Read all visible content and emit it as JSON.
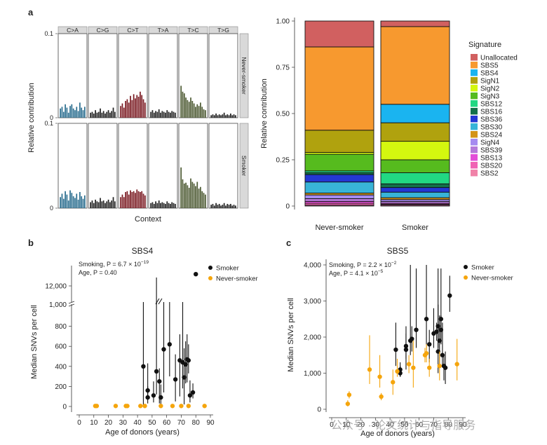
{
  "panel_labels": {
    "a": "a",
    "b": "b",
    "c": "c"
  },
  "watermark": "公众号 · 论文统计与指导服务",
  "chart_data": [
    {
      "id": "a-left",
      "type": "bar",
      "ylabel": "Relative contribution",
      "xlabel": "Context",
      "ylim": [
        0,
        0.1
      ],
      "yticks": [
        "0",
        "0.1"
      ],
      "substitutions": [
        "C>A",
        "C>G",
        "C>T",
        "T>A",
        "T>C",
        "T>G"
      ],
      "sub_colors": [
        "#2b6e8f",
        "#222222",
        "#7a1a22",
        "#222222",
        "#4d5a33",
        "#222222"
      ],
      "rows": [
        {
          "name": "Never-smoker",
          "values": [
            [
              0.011,
              0.013,
              0.007,
              0.016,
              0.012,
              0.006,
              0.014,
              0.016,
              0.011,
              0.009,
              0.013,
              0.008,
              0.018,
              0.012,
              0.009,
              0.013
            ],
            [
              0.006,
              0.007,
              0.005,
              0.009,
              0.006,
              0.007,
              0.011,
              0.006,
              0.008,
              0.005,
              0.007,
              0.009,
              0.006,
              0.008,
              0.012,
              0.007
            ],
            [
              0.014,
              0.017,
              0.012,
              0.02,
              0.022,
              0.018,
              0.026,
              0.021,
              0.028,
              0.023,
              0.027,
              0.025,
              0.031,
              0.027,
              0.022,
              0.018
            ],
            [
              0.007,
              0.009,
              0.006,
              0.008,
              0.007,
              0.01,
              0.006,
              0.008,
              0.007,
              0.006,
              0.009,
              0.007,
              0.006,
              0.008,
              0.007,
              0.006
            ],
            [
              0.038,
              0.031,
              0.029,
              0.024,
              0.021,
              0.019,
              0.024,
              0.02,
              0.017,
              0.013,
              0.016,
              0.014,
              0.018,
              0.013,
              0.01,
              0.009
            ],
            [
              0.003,
              0.004,
              0.003,
              0.005,
              0.003,
              0.004,
              0.003,
              0.004,
              0.006,
              0.003,
              0.004,
              0.003,
              0.005,
              0.003,
              0.004,
              0.003
            ]
          ]
        },
        {
          "name": "Smoker",
          "values": [
            [
              0.013,
              0.017,
              0.011,
              0.02,
              0.016,
              0.009,
              0.021,
              0.018,
              0.014,
              0.012,
              0.017,
              0.01,
              0.019,
              0.014,
              0.011,
              0.015
            ],
            [
              0.007,
              0.009,
              0.006,
              0.01,
              0.008,
              0.007,
              0.012,
              0.008,
              0.009,
              0.006,
              0.008,
              0.01,
              0.007,
              0.009,
              0.013,
              0.008
            ],
            [
              0.013,
              0.016,
              0.013,
              0.019,
              0.02,
              0.016,
              0.021,
              0.019,
              0.02,
              0.018,
              0.022,
              0.02,
              0.019,
              0.02,
              0.017,
              0.015
            ],
            [
              0.006,
              0.007,
              0.005,
              0.008,
              0.006,
              0.009,
              0.006,
              0.007,
              0.006,
              0.005,
              0.008,
              0.006,
              0.005,
              0.007,
              0.006,
              0.005
            ],
            [
              0.048,
              0.034,
              0.029,
              0.03,
              0.027,
              0.024,
              0.035,
              0.031,
              0.029,
              0.026,
              0.031,
              0.023,
              0.025,
              0.02,
              0.018,
              0.016
            ],
            [
              0.004,
              0.005,
              0.003,
              0.006,
              0.004,
              0.005,
              0.003,
              0.004,
              0.006,
              0.003,
              0.005,
              0.004,
              0.005,
              0.003,
              0.004,
              0.003
            ]
          ]
        }
      ]
    },
    {
      "id": "a-right",
      "type": "bar",
      "stacked": true,
      "ylabel": "Relative contribution",
      "ylim": [
        0,
        1
      ],
      "yticks": [
        "0",
        "0.25",
        "0.50",
        "0.75",
        "1.00"
      ],
      "categories": [
        "Never-smoker",
        "Smoker"
      ],
      "legend_title": "Signature",
      "legend": [
        {
          "name": "Unallocated",
          "color": "#d16060"
        },
        {
          "name": "SBS5",
          "color": "#f7992f"
        },
        {
          "name": "SBS4",
          "color": "#1ab4f0"
        },
        {
          "name": "SigN1",
          "color": "#b0a20e"
        },
        {
          "name": "SigN2",
          "color": "#d4f70f"
        },
        {
          "name": "SigN3",
          "color": "#56bb1e"
        },
        {
          "name": "SBS12",
          "color": "#22d883"
        },
        {
          "name": "SBS16",
          "color": "#13704a"
        },
        {
          "name": "SBS36",
          "color": "#2437d4"
        },
        {
          "name": "SBS30",
          "color": "#38b4d8"
        },
        {
          "name": "SBS24",
          "color": "#d39419"
        },
        {
          "name": "SigN4",
          "color": "#a58bf0"
        },
        {
          "name": "SBS39",
          "color": "#b57ad9"
        },
        {
          "name": "SBS13",
          "color": "#e34ed8"
        },
        {
          "name": "SBS20",
          "color": "#f062b4"
        },
        {
          "name": "SBS2",
          "color": "#f082a8"
        }
      ],
      "series": [
        {
          "name": "Unallocated",
          "values": [
            0.14,
            0.03
          ]
        },
        {
          "name": "SBS5",
          "values": [
            0.45,
            0.42
          ]
        },
        {
          "name": "SBS4",
          "values": [
            0.0,
            0.1
          ]
        },
        {
          "name": "SigN1",
          "values": [
            0.12,
            0.1
          ]
        },
        {
          "name": "SigN2",
          "values": [
            0.01,
            0.1
          ]
        },
        {
          "name": "SigN3",
          "values": [
            0.09,
            0.07
          ]
        },
        {
          "name": "SBS12",
          "values": [
            0.01,
            0.06
          ]
        },
        {
          "name": "SBS16",
          "values": [
            0.01,
            0.02
          ]
        },
        {
          "name": "SBS36",
          "values": [
            0.04,
            0.025
          ]
        },
        {
          "name": "SBS30",
          "values": [
            0.06,
            0.03
          ]
        },
        {
          "name": "SBS24",
          "values": [
            0.01,
            0.01
          ]
        },
        {
          "name": "SigN4",
          "values": [
            0.02,
            0.01
          ]
        },
        {
          "name": "SBS39",
          "values": [
            0.015,
            0.01
          ]
        },
        {
          "name": "SBS13",
          "values": [
            0.01,
            0.005
          ]
        },
        {
          "name": "SBS20",
          "values": [
            0.01,
            0.005
          ]
        },
        {
          "name": "SBS2",
          "values": [
            0.005,
            0.005
          ]
        }
      ]
    },
    {
      "id": "b",
      "type": "scatter",
      "title": "SBS4",
      "xlabel": "Age of donors (years)",
      "ylabel": "Median SNVs per cell",
      "xlim": [
        0,
        90
      ],
      "xticks": [
        0,
        10,
        20,
        30,
        40,
        50,
        60,
        70,
        80,
        90
      ],
      "lower_ylim": [
        0,
        1000
      ],
      "lower_yticks": [
        0,
        200,
        400,
        600,
        800
      ],
      "lower_ytick_labels": [
        "0",
        "200",
        "400",
        "600",
        "800"
      ],
      "top_break_label": "1,000",
      "upper_ylim": [
        11000,
        13000
      ],
      "upper_yticks": [
        12000
      ],
      "upper_ytick_labels": [
        "12,000"
      ],
      "annotation_lines": [
        "Smoking, P = 6.7 × 10",
        "−19",
        "Age, P = 0.40"
      ],
      "legend": [
        {
          "name": "Smoker",
          "color": "#111111"
        },
        {
          "name": "Never-smoker",
          "color": "#f5a50c"
        }
      ],
      "series": [
        {
          "name": "Smoker",
          "points": [
            {
              "x": 44,
              "y": 400,
              "lo": 0,
              "hi": 1050
            },
            {
              "x": 47,
              "y": 160,
              "lo": 70,
              "hi": 430
            },
            {
              "x": 47,
              "y": 90,
              "lo": 30,
              "hi": 200
            },
            {
              "x": 51,
              "y": 110,
              "lo": 40,
              "hi": 250
            },
            {
              "x": 53,
              "y": 350,
              "lo": 120,
              "hi": 1050
            },
            {
              "x": 55,
              "y": 250,
              "lo": 30,
              "hi": 380
            },
            {
              "x": 56,
              "y": 90,
              "lo": 20,
              "hi": 220
            },
            {
              "x": 58,
              "y": 570,
              "lo": 140,
              "hi": 1050
            },
            {
              "x": 62,
              "y": 620,
              "lo": 300,
              "hi": 1050
            },
            {
              "x": 66,
              "y": 270,
              "lo": 50,
              "hi": 520
            },
            {
              "x": 69,
              "y": 460,
              "lo": 100,
              "hi": 720
            },
            {
              "x": 71,
              "y": 440,
              "lo": 180,
              "hi": 1050
            },
            {
              "x": 72,
              "y": 290,
              "lo": 20,
              "hi": 580
            },
            {
              "x": 73,
              "y": 420,
              "lo": 230,
              "hi": 650
            },
            {
              "x": 74,
              "y": 470,
              "lo": 240,
              "hi": 720
            },
            {
              "x": 75,
              "y": 460,
              "lo": 330,
              "hi": 620
            },
            {
              "x": 76,
              "y": 110,
              "lo": 40,
              "hi": 260
            },
            {
              "x": 78,
              "y": 140,
              "lo": 80,
              "hi": 230
            },
            {
              "x": 80,
              "y": 12700,
              "lo": null,
              "hi": null
            }
          ]
        },
        {
          "name": "Never-smoker",
          "points": [
            {
              "x": 11,
              "y": 5
            },
            {
              "x": 12,
              "y": 5
            },
            {
              "x": 25,
              "y": 5
            },
            {
              "x": 32,
              "y": 5
            },
            {
              "x": 33,
              "y": 5
            },
            {
              "x": 42,
              "y": 5
            },
            {
              "x": 45,
              "y": 5
            },
            {
              "x": 56,
              "y": 5
            },
            {
              "x": 64,
              "y": 5
            },
            {
              "x": 70,
              "y": 5
            },
            {
              "x": 75,
              "y": 5
            },
            {
              "x": 86,
              "y": 5
            }
          ]
        }
      ]
    },
    {
      "id": "c",
      "type": "scatter",
      "title": "SBS5",
      "xlabel": "Age of donors (years)",
      "ylabel": "Median SNVs per cell",
      "xlim": [
        0,
        90
      ],
      "xticks": [
        0,
        10,
        20,
        30,
        40,
        50,
        60,
        70,
        80,
        90
      ],
      "ylim": [
        0,
        4000
      ],
      "yticks": [
        0,
        1000,
        2000,
        3000,
        4000
      ],
      "ytick_labels": [
        "0",
        "1,000",
        "2,000",
        "3,000",
        "4,000"
      ],
      "annotation_lines": [
        "Smoking, P = 2.2 × 10",
        "−2",
        "Age, P = 4.1 × 10",
        "−5"
      ],
      "legend": [
        {
          "name": "Smoker",
          "color": "#111111"
        },
        {
          "name": "Never-smoker",
          "color": "#f5a50c"
        }
      ],
      "series": [
        {
          "name": "Smoker",
          "points": [
            {
              "x": 44,
              "y": 1650,
              "lo": 1200,
              "hi": 2400
            },
            {
              "x": 47,
              "y": 1000,
              "lo": 900,
              "hi": 1200
            },
            {
              "x": 47,
              "y": 1100,
              "lo": 900,
              "hi": 1300
            },
            {
              "x": 51,
              "y": 1750,
              "lo": 1400,
              "hi": 2100
            },
            {
              "x": 51,
              "y": 1650,
              "lo": 1100,
              "hi": 2300
            },
            {
              "x": 54,
              "y": 1900,
              "lo": 1500,
              "hi": 4000
            },
            {
              "x": 55,
              "y": 1950,
              "lo": 1600,
              "hi": 2300
            },
            {
              "x": 58,
              "y": 2200,
              "lo": 1700,
              "hi": 3900
            },
            {
              "x": 65,
              "y": 2500,
              "lo": 1600,
              "hi": 4000
            },
            {
              "x": 67,
              "y": 1800,
              "lo": 1300,
              "hi": 2200
            },
            {
              "x": 70,
              "y": 2100,
              "lo": 1700,
              "hi": 2800
            },
            {
              "x": 72,
              "y": 2150,
              "lo": 1900,
              "hi": 2400
            },
            {
              "x": 73,
              "y": 1600,
              "lo": 1000,
              "hi": 3900
            },
            {
              "x": 73,
              "y": 2300,
              "lo": 1700,
              "hi": 2900
            },
            {
              "x": 74,
              "y": 1900,
              "lo": 1200,
              "hi": 2600
            },
            {
              "x": 75,
              "y": 2500,
              "lo": 1900,
              "hi": 3900
            },
            {
              "x": 75,
              "y": 2200,
              "lo": 1800,
              "hi": 2600
            },
            {
              "x": 76,
              "y": 1500,
              "lo": 1200,
              "hi": 2400
            },
            {
              "x": 77,
              "y": 1200,
              "lo": 800,
              "hi": 1500
            },
            {
              "x": 78,
              "y": 1150,
              "lo": 700,
              "hi": 1600
            },
            {
              "x": 81,
              "y": 3150,
              "lo": 2700,
              "hi": 3700
            }
          ]
        },
        {
          "name": "Never-smoker",
          "points": [
            {
              "x": 11,
              "y": 150,
              "lo": 80,
              "hi": 250
            },
            {
              "x": 12,
              "y": 400,
              "lo": 300,
              "hi": 500
            },
            {
              "x": 26,
              "y": 1100,
              "lo": 700,
              "hi": 2050
            },
            {
              "x": 33,
              "y": 900,
              "lo": 600,
              "hi": 1500
            },
            {
              "x": 34,
              "y": 350,
              "lo": 250,
              "hi": 450
            },
            {
              "x": 42,
              "y": 750,
              "lo": 400,
              "hi": 1100
            },
            {
              "x": 45,
              "y": 1050,
              "lo": 900,
              "hi": 1400
            },
            {
              "x": 53,
              "y": 1250,
              "lo": 1000,
              "hi": 1500
            },
            {
              "x": 56,
              "y": 1150,
              "lo": 600,
              "hi": 1900
            },
            {
              "x": 64,
              "y": 1500,
              "lo": 1300,
              "hi": 1700
            },
            {
              "x": 65,
              "y": 1550,
              "lo": 1300,
              "hi": 1800
            },
            {
              "x": 67,
              "y": 1150,
              "lo": 900,
              "hi": 1400
            },
            {
              "x": 74,
              "y": 1200,
              "lo": 800,
              "hi": 1600
            },
            {
              "x": 86,
              "y": 1250,
              "lo": 800,
              "hi": 1950
            }
          ]
        }
      ]
    }
  ]
}
